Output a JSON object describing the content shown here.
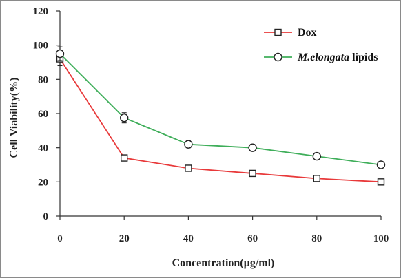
{
  "chart_data": {
    "type": "line",
    "xlabel": "Concentration(µg/ml)",
    "ylabel": "Cell Viability(%)",
    "xlim": [
      0,
      100
    ],
    "ylim": [
      0,
      120
    ],
    "x_ticks": [
      0,
      20,
      40,
      60,
      80,
      100
    ],
    "y_ticks": [
      0,
      20,
      40,
      60,
      80,
      100,
      120
    ],
    "x_tick_labels": [
      "0",
      "20",
      "40",
      "60",
      "80",
      "100"
    ],
    "y_tick_labels": [
      "0",
      "20",
      "40",
      "60",
      "80",
      "100",
      "120"
    ],
    "legend_position": "top-right",
    "grid": false,
    "series": [
      {
        "name": "Dox",
        "name_italic": "",
        "name_suffix": "",
        "color": "#e8393a",
        "marker": "square",
        "x": [
          0,
          20,
          40,
          60,
          80,
          100
        ],
        "y": [
          92,
          34,
          28,
          25,
          22,
          20
        ],
        "error": [
          4,
          1,
          1,
          1,
          1,
          1
        ]
      },
      {
        "name": "M.elongata lipids",
        "name_italic": "M.elongata",
        "name_suffix": " lipids",
        "color": "#3fae5a",
        "marker": "circle",
        "x": [
          0,
          20,
          40,
          60,
          80,
          100
        ],
        "y": [
          95,
          57.5,
          42,
          40,
          35,
          30
        ],
        "error": [
          4,
          3,
          2,
          2,
          2,
          1.5
        ]
      }
    ]
  }
}
